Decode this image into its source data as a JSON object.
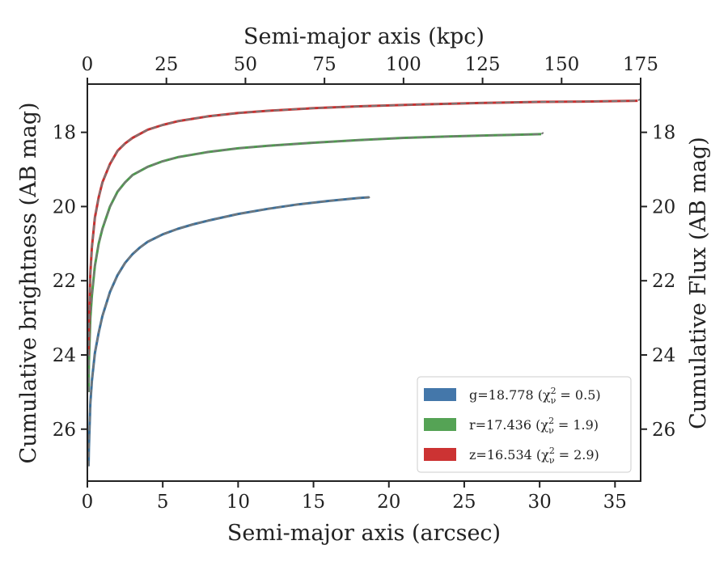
{
  "chart_data": {
    "type": "line",
    "xlabel_bottom": "Semi-major axis (arcsec)",
    "xlabel_top": "Semi-major axis (kpc)",
    "ylabel_left": "Cumulative brightness (AB mag)",
    "ylabel_right": "Cumulative Flux (AB mag)",
    "xlim": [
      0,
      36.7
    ],
    "ylim": [
      27.4,
      16.7
    ],
    "y_inverted": true,
    "xlim_top": [
      0,
      175
    ],
    "xticks_bottom": [
      "0",
      "5",
      "10",
      "15",
      "20",
      "25",
      "30",
      "35"
    ],
    "xticks_top": [
      "0",
      "25",
      "50",
      "75",
      "100",
      "125",
      "150",
      "175"
    ],
    "yticks": [
      "18",
      "20",
      "22",
      "24",
      "26"
    ],
    "grid": false,
    "legend_position": "lower-right",
    "legend": [
      {
        "label": "g=18.778 (χ",
        "sub": "ν",
        "sup": "2",
        "tail": " = 0.5)",
        "color": "#4477aa"
      },
      {
        "label": "r=17.436 (χ",
        "sub": "ν",
        "sup": "2",
        "tail": " = 1.9)",
        "color": "#55a355"
      },
      {
        "label": "z=16.534 (χ",
        "sub": "ν",
        "sup": "2",
        "tail": " = 2.9)",
        "color": "#cc3333"
      }
    ],
    "series": [
      {
        "name": "g=18.778",
        "color": "#3a6f9a",
        "x": [
          0.08,
          0.1,
          0.2,
          0.3,
          0.5,
          0.75,
          1.0,
          1.5,
          2.0,
          2.5,
          3.0,
          3.5,
          4.0,
          5.0,
          6.0,
          7.0,
          8.0,
          10.0,
          12.0,
          14.0,
          16.0,
          18.0,
          18.7
        ],
        "y": [
          27.0,
          26.5,
          25.3,
          24.7,
          23.95,
          23.4,
          22.95,
          22.3,
          21.85,
          21.52,
          21.28,
          21.1,
          20.95,
          20.75,
          20.6,
          20.48,
          20.38,
          20.2,
          20.06,
          19.94,
          19.85,
          19.77,
          19.75
        ]
      },
      {
        "name": "r=17.436",
        "color": "#4c9a4c",
        "x": [
          0.08,
          0.1,
          0.2,
          0.3,
          0.5,
          0.75,
          1.0,
          1.5,
          2.0,
          2.5,
          3.0,
          4.0,
          5.0,
          6.0,
          7.0,
          8.0,
          10.0,
          12.0,
          15.0,
          18.0,
          21.0,
          24.0,
          27.0,
          30.1
        ],
        "y": [
          25.0,
          24.2,
          23.0,
          22.4,
          21.6,
          21.0,
          20.6,
          20.0,
          19.6,
          19.35,
          19.15,
          18.93,
          18.78,
          18.67,
          18.6,
          18.53,
          18.43,
          18.36,
          18.28,
          18.21,
          18.15,
          18.11,
          18.08,
          18.05
        ]
      },
      {
        "name": "z=16.534",
        "color": "#c83030",
        "x": [
          0.08,
          0.1,
          0.2,
          0.3,
          0.5,
          0.75,
          1.0,
          1.5,
          2.0,
          2.5,
          3.0,
          4.0,
          5.0,
          6.0,
          8.0,
          10.0,
          12.0,
          15.0,
          18.0,
          22.0,
          26.0,
          30.0,
          33.0,
          36.5
        ],
        "y": [
          24.0,
          23.2,
          21.8,
          21.1,
          20.3,
          19.75,
          19.35,
          18.85,
          18.5,
          18.3,
          18.15,
          17.93,
          17.8,
          17.7,
          17.57,
          17.48,
          17.42,
          17.35,
          17.3,
          17.25,
          17.21,
          17.18,
          17.17,
          17.15
        ]
      }
    ],
    "model_color": "#777777"
  }
}
